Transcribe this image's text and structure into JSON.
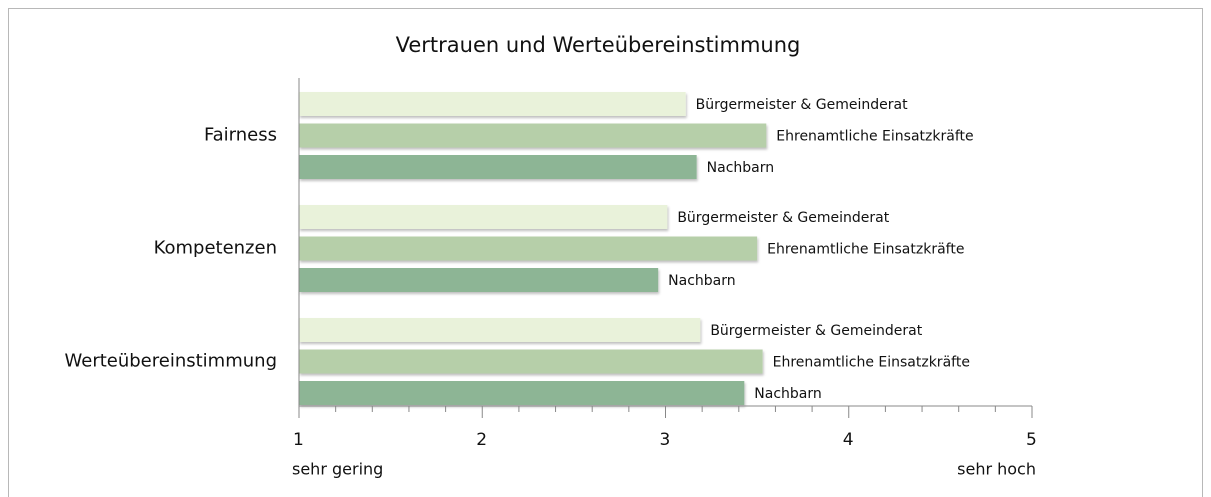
{
  "chart_data": {
    "type": "barh",
    "title": "Vertrauen und Werteübereinstimmung",
    "categories": [
      "Fairness",
      "Kompetenzen",
      "Werteübereinstimmung"
    ],
    "series": [
      {
        "name": "Bürgermeister & Gemeinderat",
        "color": "#e9f2da",
        "values": [
          3.11,
          3.01,
          3.19
        ]
      },
      {
        "name": "Ehrenamtliche Einsatzkräfte",
        "color": "#b6cfa9",
        "values": [
          3.55,
          3.5,
          3.53
        ]
      },
      {
        "name": "Nachbarn",
        "color": "#8db595",
        "values": [
          3.17,
          2.96,
          3.43
        ]
      }
    ],
    "xlim": [
      1,
      5
    ],
    "xticks": [
      1,
      2,
      3,
      4,
      5
    ],
    "axis_annotations": [
      "sehr gering",
      "sehr hoch"
    ]
  }
}
